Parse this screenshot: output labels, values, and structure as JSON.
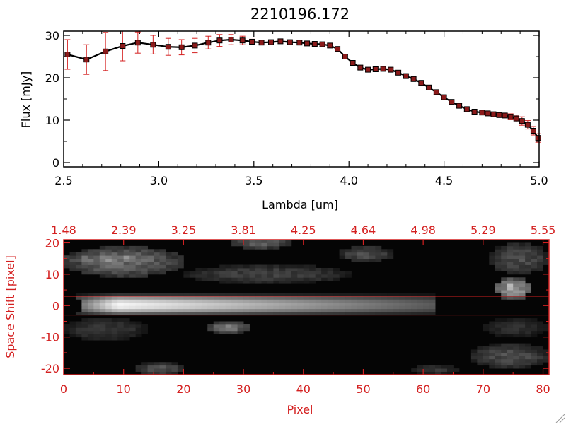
{
  "colors": {
    "foreground": "#000000",
    "accent_red": "#d42020",
    "image_background": "#050505"
  },
  "chart_data": [
    {
      "type": "line",
      "title": "2210196.172",
      "xlabel": "Lambda [um]",
      "ylabel": "Flux [mJy]",
      "xlim": [
        2.5,
        5.0
      ],
      "ylim": [
        -1,
        31
      ],
      "x_ticks": [
        "2.5",
        "3.0",
        "3.5",
        "4.0",
        "4.5",
        "5.0"
      ],
      "y_ticks": [
        "0",
        "10",
        "20",
        "30"
      ],
      "grid": false,
      "series": [
        {
          "marker": "square",
          "line_color": "#000000",
          "marker_color": "#8b1a1a",
          "error_color": "#d42020",
          "x": [
            2.52,
            2.62,
            2.72,
            2.81,
            2.89,
            2.97,
            3.05,
            3.12,
            3.19,
            3.26,
            3.32,
            3.38,
            3.44,
            3.49,
            3.54,
            3.59,
            3.64,
            3.69,
            3.74,
            3.78,
            3.82,
            3.86,
            3.9,
            3.94,
            3.98,
            4.02,
            4.06,
            4.1,
            4.14,
            4.18,
            4.22,
            4.26,
            4.3,
            4.34,
            4.38,
            4.42,
            4.46,
            4.5,
            4.54,
            4.58,
            4.62,
            4.66,
            4.7,
            4.73,
            4.76,
            4.79,
            4.82,
            4.85,
            4.88,
            4.91,
            4.94,
            4.97,
            4.995
          ],
          "y": [
            25.5,
            24.3,
            26.2,
            27.5,
            28.3,
            27.8,
            27.3,
            27.2,
            27.6,
            28.3,
            28.8,
            29.0,
            28.8,
            28.5,
            28.3,
            28.4,
            28.6,
            28.4,
            28.3,
            28.1,
            28.0,
            27.9,
            27.6,
            26.8,
            25.0,
            23.5,
            22.4,
            21.9,
            22.0,
            22.1,
            21.9,
            21.2,
            20.4,
            19.7,
            18.8,
            17.7,
            16.6,
            15.4,
            14.3,
            13.4,
            12.6,
            12.0,
            11.8,
            11.6,
            11.4,
            11.2,
            11.1,
            10.8,
            10.4,
            9.8,
            8.9,
            7.5,
            5.8
          ],
          "err": [
            3.5,
            3.5,
            4.5,
            3.5,
            2.5,
            2.2,
            2.0,
            1.8,
            1.7,
            1.5,
            1.4,
            1.2,
            1.0,
            0.6,
            0.5,
            0.5,
            0.5,
            0.5,
            0.5,
            0.5,
            0.5,
            0.5,
            0.5,
            0.5,
            0.5,
            0.5,
            0.5,
            0.5,
            0.5,
            0.5,
            0.5,
            0.5,
            0.5,
            0.5,
            0.5,
            0.5,
            0.5,
            0.5,
            0.5,
            0.5,
            0.5,
            0.5,
            0.5,
            0.5,
            0.5,
            0.5,
            0.5,
            0.7,
            0.8,
            1.0,
            1.0,
            1.0,
            1.0
          ]
        }
      ]
    },
    {
      "type": "heatmap",
      "xlabel": "Pixel",
      "ylabel": "Space Shift [pixel]",
      "xlim": [
        0,
        81
      ],
      "ylim": [
        -22,
        21
      ],
      "x_ticks": [
        "0",
        "10",
        "20",
        "30",
        "40",
        "50",
        "60",
        "70",
        "80"
      ],
      "y_ticks": [
        "-20",
        "-10",
        "0",
        "10",
        "20"
      ],
      "top_axis_ticks": [
        "1.48",
        "2.39",
        "3.25",
        "3.81",
        "4.25",
        "4.64",
        "4.98",
        "5.29",
        "5.55"
      ],
      "extraction_window": [
        -3,
        3
      ],
      "colormap": "grayscale",
      "features": [
        {
          "kind": "trace",
          "x_start": 2,
          "x_end": 62,
          "y_center": 0.3,
          "y_halfwidth": 2.6,
          "peak_x": 9,
          "peak_level": 0.97,
          "end_level": 0.35
        },
        {
          "kind": "blob",
          "x": [
            0,
            20
          ],
          "y": [
            9,
            19
          ],
          "level": 0.4
        },
        {
          "kind": "blob",
          "x": [
            0,
            18
          ],
          "y": [
            13,
            17
          ],
          "level": 0.5
        },
        {
          "kind": "blob",
          "x": [
            20,
            48
          ],
          "y": [
            7,
            13
          ],
          "level": 0.25
        },
        {
          "kind": "blob",
          "x": [
            28,
            38
          ],
          "y": [
            18,
            22
          ],
          "level": 0.35
        },
        {
          "kind": "blob",
          "x": [
            46,
            55
          ],
          "y": [
            14,
            19
          ],
          "level": 0.3
        },
        {
          "kind": "blob",
          "x": [
            72,
            78
          ],
          "y": [
            2,
            9
          ],
          "level": 0.65
        },
        {
          "kind": "blob",
          "x": [
            71,
            81
          ],
          "y": [
            10,
            20
          ],
          "level": 0.3
        },
        {
          "kind": "blob",
          "x": [
            0,
            14
          ],
          "y": [
            -11,
            -4
          ],
          "level": 0.22
        },
        {
          "kind": "blob",
          "x": [
            24,
            31
          ],
          "y": [
            -9,
            -5
          ],
          "level": 0.45
        },
        {
          "kind": "blob",
          "x": [
            12,
            20
          ],
          "y": [
            -22,
            -18
          ],
          "level": 0.3
        },
        {
          "kind": "blob",
          "x": [
            58,
            66
          ],
          "y": [
            -22,
            -19
          ],
          "level": 0.2
        },
        {
          "kind": "blob",
          "x": [
            68,
            81
          ],
          "y": [
            -20,
            -12
          ],
          "level": 0.3
        },
        {
          "kind": "blob",
          "x": [
            70,
            81
          ],
          "y": [
            -10,
            -4
          ],
          "level": 0.18
        },
        {
          "kind": "dark",
          "x": [
            0,
            3
          ],
          "y": [
            -2,
            2
          ]
        }
      ]
    }
  ]
}
